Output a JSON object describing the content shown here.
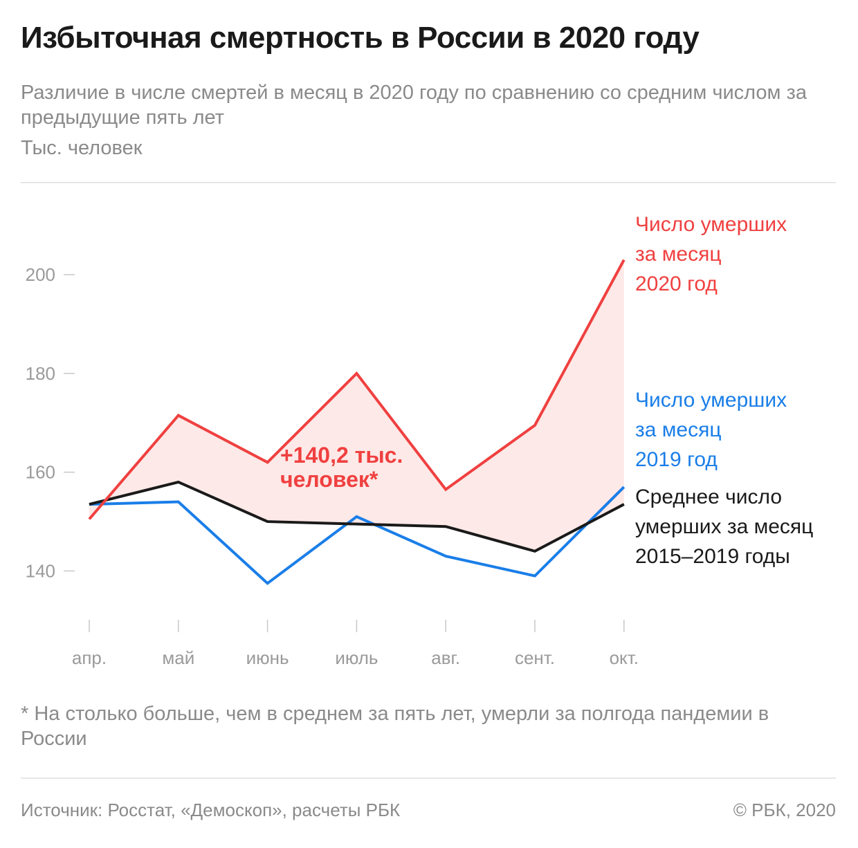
{
  "title": "Избыточная смертность в России в 2020 году",
  "subtitle": "Различие в числе смертей в месяц в 2020 году по сравнению со средним числом за предыдущие пять лет",
  "unit": "Тыс. человек",
  "footnote": "* На столько больше, чем в среднем за пять лет, умерли за полгода пандемии в России",
  "source": "Источник: Росстат, «Демоскоп», расчеты РБК",
  "copyright": "© РБК, 2020",
  "colors": {
    "series_2020": "#f04040",
    "series_2019": "#1a7ee8",
    "series_avg": "#1a1a1a",
    "fill_excess": "#fde9e7",
    "axis_text": "#9a9a9a"
  },
  "chart_data": {
    "type": "line",
    "categories": [
      "апр.",
      "май",
      "июнь",
      "июль",
      "авг.",
      "сент.",
      "окт."
    ],
    "y_ticks": [
      "200",
      "180",
      "160",
      "140"
    ],
    "y_tick_values": [
      200,
      180,
      160,
      140
    ],
    "ylim": [
      129,
      215
    ],
    "grid": false,
    "series": [
      {
        "key": "s2020",
        "label_lines": [
          "Число умерших",
          "за месяц",
          "2020 год"
        ],
        "values": [
          150.5,
          171.5,
          162.0,
          180.0,
          156.5,
          169.5,
          203.0
        ]
      },
      {
        "key": "s2019",
        "label_lines": [
          "Число умерших",
          "за месяц",
          "2019 год"
        ],
        "values": [
          153.5,
          154.0,
          137.5,
          151.0,
          143.0,
          139.0,
          157.0
        ]
      },
      {
        "key": "avg",
        "label_lines": [
          "Среднее число",
          "умерших за месяц",
          "2015–2019 годы"
        ],
        "values": [
          153.5,
          158.0,
          150.0,
          149.5,
          149.0,
          144.0,
          153.5
        ]
      }
    ],
    "annotation": {
      "lines": [
        "+140,2 тыс.",
        "человек*"
      ],
      "value": 140.2
    }
  }
}
